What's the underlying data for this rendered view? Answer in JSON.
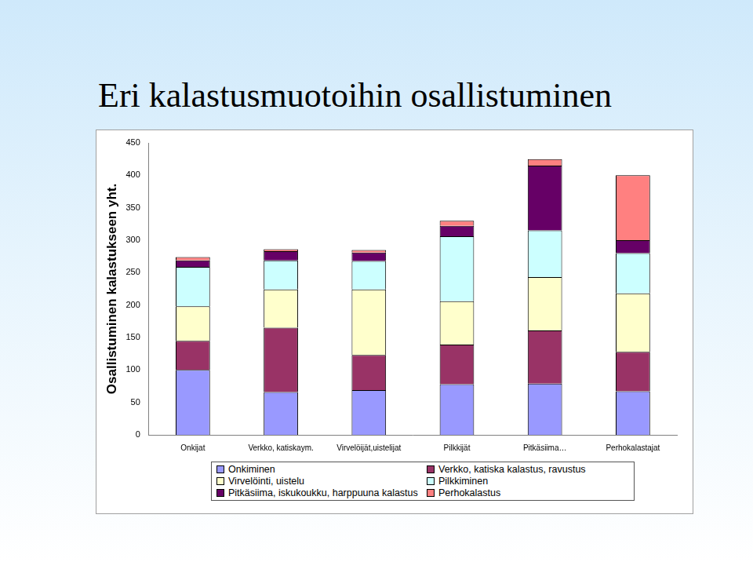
{
  "chart_data": {
    "type": "bar",
    "title": "Eri kalastusmuotoihin osallistuminen",
    "ylabel": "Osallistuminen kalastukseen yht.",
    "categories": [
      "Onkijat",
      "Verkko, katiskaym.",
      "Virvelöijät,uistelijat",
      "Pilkkijät",
      "Pitkäsiima…",
      "Perhokalastajat"
    ],
    "series": [
      {
        "name": "Onkiminen",
        "color": "#9999ff",
        "values": [
          100,
          66,
          69,
          78,
          79,
          67
        ]
      },
      {
        "name": "Verkko, katiska kalastus, ravustus",
        "color": "#993366",
        "values": [
          45,
          99,
          54,
          61,
          82,
          61
        ]
      },
      {
        "name": "Virvelöinti, uistelu",
        "color": "#ffffcc",
        "values": [
          53,
          59,
          101,
          67,
          82,
          90
        ]
      },
      {
        "name": "Pilkkiminen",
        "color": "#ccffff",
        "values": [
          61,
          45,
          44,
          100,
          72,
          62
        ]
      },
      {
        "name": "Pitkäsiima, iskukoukku, harppuuna kalastus",
        "color": "#660066",
        "values": [
          10,
          14,
          13,
          16,
          100,
          20
        ]
      },
      {
        "name": "Perhokalastus",
        "color": "#ff8080",
        "values": [
          5,
          3,
          4,
          8,
          10,
          100
        ]
      }
    ],
    "ylim": [
      0,
      450
    ],
    "yticks": [
      0,
      50,
      100,
      150,
      200,
      250,
      300,
      350,
      400,
      450
    ],
    "stacked": true,
    "grid": false,
    "legend": "bottom"
  }
}
